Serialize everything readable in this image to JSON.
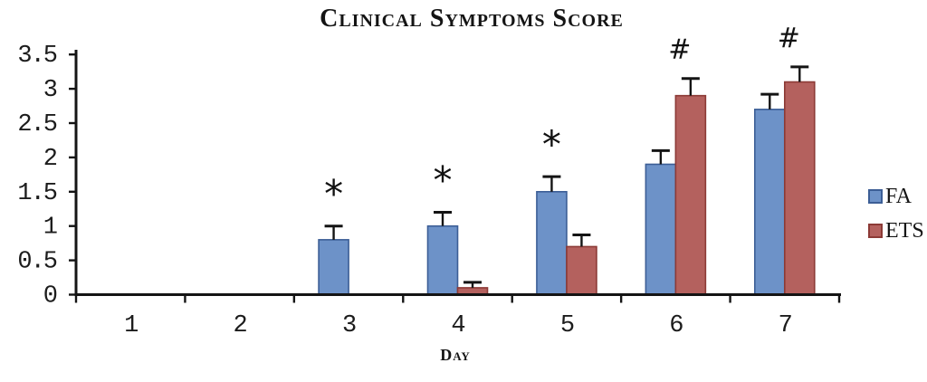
{
  "chart_data": {
    "type": "bar",
    "title": "Clinical Symptoms Score",
    "xlabel": "Day",
    "ylabel": "",
    "categories": [
      "1",
      "2",
      "3",
      "4",
      "5",
      "6",
      "7"
    ],
    "series": [
      {
        "name": "FA",
        "color": "#6d92c8",
        "border_color": "#3c5e96",
        "values": [
          0,
          0,
          0.8,
          1.0,
          1.5,
          1.9,
          2.7
        ],
        "errors": [
          0,
          0,
          0.2,
          0.2,
          0.22,
          0.2,
          0.22
        ]
      },
      {
        "name": "ETS",
        "color": "#b4615e",
        "border_color": "#8c3a36",
        "values": [
          0,
          0,
          0,
          0.1,
          0.7,
          2.9,
          3.1
        ],
        "errors": [
          0,
          0,
          0,
          0.08,
          0.17,
          0.25,
          0.22
        ]
      }
    ],
    "ylim": [
      0,
      3.5
    ],
    "ytick_labels": [
      "0",
      "0.5",
      "1",
      "1.5",
      "2",
      "2.5",
      "3",
      "3.5"
    ],
    "grid": false,
    "legend_position": "right",
    "error_bar_direction": "plus",
    "annotations": [
      {
        "symbol": "*",
        "series": "FA",
        "category": "3"
      },
      {
        "symbol": "*",
        "series": "FA",
        "category": "4"
      },
      {
        "symbol": "*",
        "series": "FA",
        "category": "5"
      },
      {
        "symbol": "#",
        "series": "ETS",
        "category": "6"
      },
      {
        "symbol": "#",
        "series": "ETS",
        "category": "7"
      }
    ]
  },
  "colors": {
    "axis": "#141414",
    "background": "#ffffff"
  }
}
